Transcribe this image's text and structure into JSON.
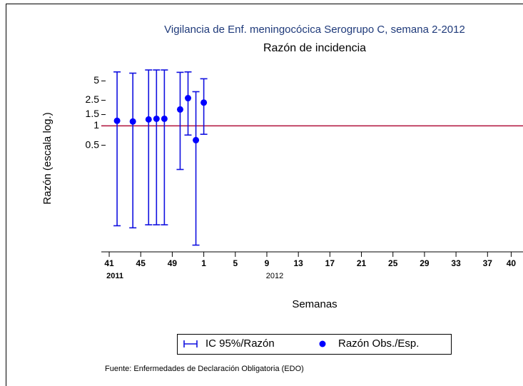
{
  "chart_data": {
    "type": "errorbar",
    "title": "Vigilancia de Enf. meningocócica Serogrupo C, semana 2-2012",
    "subtitle": "Razón de incidencia",
    "x_label": "Semanas",
    "y_label": "Razón (escala log.)",
    "source": "Fuente: Enfermedades de Declaración Obligatoria (EDO)",
    "log_scale": true,
    "x": [
      42,
      44,
      46,
      47,
      48,
      50,
      51,
      52,
      53
    ],
    "series": [
      {
        "name": "IC 95%/Razón",
        "color": "#1010e0",
        "low": [
          0.028,
          0.026,
          0.029,
          0.029,
          0.029,
          0.21,
          0.72,
          0.014,
          0.74
        ],
        "high": [
          6.9,
          6.6,
          7.4,
          7.4,
          7.4,
          6.8,
          6.9,
          3.4,
          5.4
        ]
      },
      {
        "name": "Razón Obs./Esp.",
        "color": "#0000ff",
        "values": [
          1.2,
          1.17,
          1.26,
          1.29,
          1.29,
          1.8,
          2.7,
          0.6,
          2.3
        ]
      }
    ],
    "reference_line": 1,
    "reference_color": "#b0103a",
    "xlim": [
      40,
      93.5
    ],
    "xticks": [
      {
        "value": 41,
        "label": "41"
      },
      {
        "value": 45,
        "label": "45"
      },
      {
        "value": 49,
        "label": "49"
      },
      {
        "value": 53,
        "label": "1"
      },
      {
        "value": 57,
        "label": "5"
      },
      {
        "value": 61,
        "label": "9"
      },
      {
        "value": 65,
        "label": "13"
      },
      {
        "value": 69,
        "label": "17"
      },
      {
        "value": 73,
        "label": "21"
      },
      {
        "value": 77,
        "label": "25"
      },
      {
        "value": 81,
        "label": "29"
      },
      {
        "value": 85,
        "label": "33"
      },
      {
        "value": 89,
        "label": "37"
      },
      {
        "value": 92,
        "label": "40"
      }
    ],
    "year_labels": [
      "2011",
      "2012"
    ],
    "ylim": [
      0.011,
      8
    ],
    "yticks": [
      0.5,
      1,
      1.5,
      2.5,
      5
    ]
  }
}
